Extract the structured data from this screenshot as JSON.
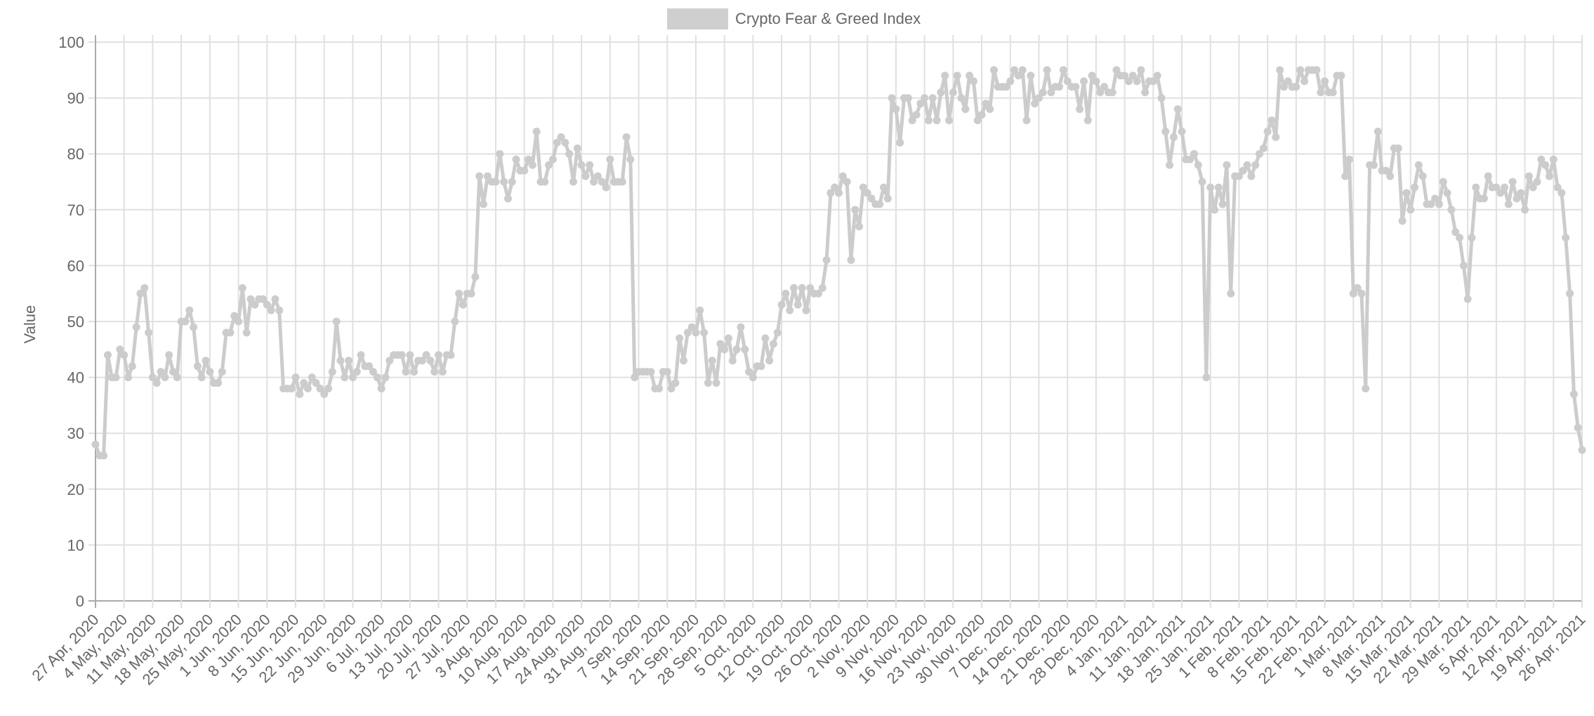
{
  "chart_data": {
    "type": "line",
    "title": "",
    "legend": {
      "label": "Crypto Fear & Greed Index",
      "placement": "top"
    },
    "xlabel": "",
    "ylabel": "Value",
    "ylim": [
      0,
      100
    ],
    "y_ticks": [
      "0",
      "10",
      "20",
      "30",
      "40",
      "50",
      "60",
      "70",
      "80",
      "90",
      "100"
    ],
    "grid": true,
    "color": "#cccccc",
    "x_tick_labels": [
      "27 Apr, 2020",
      "4 May, 2020",
      "11 May, 2020",
      "18 May, 2020",
      "25 May, 2020",
      "1 Jun, 2020",
      "8 Jun, 2020",
      "15 Jun, 2020",
      "22 Jun, 2020",
      "29 Jun, 2020",
      "6 Jul, 2020",
      "13 Jul, 2020",
      "20 Jul, 2020",
      "27 Jul, 2020",
      "3 Aug, 2020",
      "10 Aug, 2020",
      "17 Aug, 2020",
      "24 Aug, 2020",
      "31 Aug, 2020",
      "7 Sep, 2020",
      "14 Sep, 2020",
      "21 Sep, 2020",
      "28 Sep, 2020",
      "5 Oct, 2020",
      "12 Oct, 2020",
      "19 Oct, 2020",
      "26 Oct, 2020",
      "2 Nov, 2020",
      "9 Nov, 2020",
      "16 Nov, 2020",
      "23 Nov, 2020",
      "30 Nov, 2020",
      "7 Dec, 2020",
      "14 Dec, 2020",
      "21 Dec, 2020",
      "28 Dec, 2020",
      "4 Jan, 2021",
      "11 Jan, 2021",
      "18 Jan, 2021",
      "25 Jan, 2021",
      "1 Feb, 2021",
      "8 Feb, 2021",
      "15 Feb, 2021",
      "22 Feb, 2021",
      "1 Mar, 2021",
      "8 Mar, 2021",
      "15 Mar, 2021",
      "22 Mar, 2021",
      "29 Mar, 2021",
      "5 Apr, 2021",
      "12 Apr, 2021",
      "19 Apr, 2021",
      "26 Apr, 2021"
    ],
    "values": [
      28,
      26,
      26,
      44,
      40,
      40,
      45,
      44,
      40,
      42,
      49,
      55,
      56,
      48,
      40,
      39,
      41,
      40,
      44,
      41,
      40,
      50,
      50,
      52,
      49,
      42,
      40,
      43,
      41,
      39,
      39,
      41,
      48,
      48,
      51,
      50,
      56,
      48,
      54,
      53,
      54,
      54,
      53,
      52,
      54,
      52,
      38,
      38,
      38,
      40,
      37,
      39,
      38,
      40,
      39,
      38,
      37,
      38,
      41,
      50,
      43,
      40,
      43,
      40,
      41,
      44,
      42,
      42,
      41,
      40,
      38,
      40,
      43,
      44,
      44,
      44,
      41,
      44,
      41,
      43,
      43,
      44,
      43,
      41,
      44,
      41,
      44,
      44,
      50,
      55,
      53,
      55,
      55,
      58,
      76,
      71,
      76,
      75,
      75,
      80,
      75,
      72,
      75,
      79,
      77,
      77,
      79,
      78,
      84,
      75,
      75,
      78,
      79,
      82,
      83,
      82,
      80,
      75,
      81,
      78,
      76,
      78,
      75,
      76,
      75,
      74,
      79,
      75,
      75,
      75,
      83,
      79,
      40,
      41,
      41,
      41,
      41,
      38,
      38,
      41,
      41,
      38,
      39,
      47,
      43,
      48,
      49,
      48,
      52,
      48,
      39,
      43,
      39,
      46,
      45,
      47,
      43,
      45,
      49,
      45,
      41,
      40,
      42,
      42,
      47,
      43,
      46,
      48,
      53,
      55,
      52,
      56,
      53,
      56,
      52,
      56,
      55,
      55,
      56,
      61,
      73,
      74,
      73,
      76,
      75,
      61,
      70,
      67,
      74,
      73,
      72,
      71,
      71,
      74,
      72,
      90,
      88,
      82,
      90,
      90,
      86,
      87,
      89,
      90,
      86,
      90,
      86,
      91,
      94,
      86,
      91,
      94,
      90,
      88,
      94,
      93,
      86,
      87,
      89,
      88,
      95,
      92,
      92,
      92,
      93,
      95,
      94,
      95,
      86,
      94,
      89,
      90,
      91,
      95,
      91,
      92,
      92,
      95,
      93,
      92,
      92,
      88,
      93,
      86,
      94,
      93,
      91,
      92,
      91,
      91,
      95,
      94,
      94,
      93,
      94,
      93,
      95,
      91,
      93,
      93,
      94,
      90,
      84,
      78,
      83,
      88,
      84,
      79,
      79,
      80,
      78,
      75,
      40,
      74,
      70,
      74,
      71,
      78,
      55,
      76,
      76,
      77,
      78,
      76,
      78,
      80,
      81,
      84,
      86,
      83,
      95,
      92,
      93,
      92,
      92,
      95,
      93,
      95,
      95,
      95,
      91,
      93,
      91,
      91,
      94,
      94,
      76,
      79,
      55,
      56,
      55,
      38,
      78,
      78,
      84,
      77,
      77,
      76,
      81,
      81,
      68,
      73,
      70,
      74,
      78,
      76,
      71,
      71,
      72,
      71,
      75,
      73,
      70,
      66,
      65,
      60,
      54,
      65,
      74,
      72,
      72,
      76,
      74,
      74,
      73,
      74,
      71,
      75,
      72,
      73,
      70,
      76,
      74,
      75,
      79,
      78,
      76,
      79,
      74,
      73,
      65,
      55,
      37,
      31,
      27
    ]
  }
}
